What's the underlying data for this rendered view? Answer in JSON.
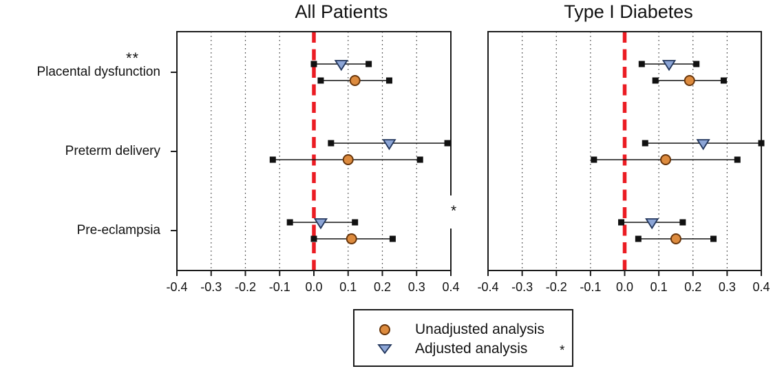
{
  "figure": {
    "annotations": {
      "placental_double_star": "**",
      "between_panels_star": "*"
    },
    "legend": {
      "items": [
        {
          "marker": "circle-icon",
          "label": "Unadjusted analysis"
        },
        {
          "marker": "triangle-down-icon",
          "label": "Adjusted analysis"
        }
      ],
      "footnote_star": "*"
    },
    "colors": {
      "unadjusted_fill": "#DD8B3E",
      "unadjusted_stroke": "#67350B",
      "adjusted_fill": "#8CA5D6",
      "adjusted_stroke": "#22365C",
      "reference_line": "#EB1C23",
      "axis": "#1a1a1a",
      "errorbar": "#111111",
      "grid_dot": "#3a3a3a"
    }
  },
  "chart_data": [
    {
      "type": "forest",
      "title": "All Patients",
      "xlim": [
        -0.4,
        0.4
      ],
      "xtick_values": [
        -0.4,
        -0.3,
        -0.2,
        -0.1,
        0.0,
        0.1,
        0.2,
        0.3,
        0.4
      ],
      "xtick_labels": [
        "-0.4",
        "-0.3",
        "-0.2",
        "-0.1",
        "0.0",
        "0.1",
        "0.2",
        "0.3",
        "0.4"
      ],
      "reference_x": 0.0,
      "grid": true,
      "categories": [
        "Placental dysfunction",
        "Preterm delivery",
        "Pre-eclampsia"
      ],
      "series": [
        {
          "name": "Unadjusted analysis",
          "marker": "circle",
          "estimates": [
            0.12,
            0.1,
            0.11
          ],
          "ci_low": [
            0.02,
            -0.12,
            0.0
          ],
          "ci_high": [
            0.22,
            0.31,
            0.23
          ]
        },
        {
          "name": "Adjusted analysis",
          "marker": "triangle-down",
          "estimates": [
            0.08,
            0.22,
            0.02
          ],
          "ci_low": [
            0.0,
            0.05,
            -0.07
          ],
          "ci_high": [
            0.16,
            0.39,
            0.12
          ]
        }
      ]
    },
    {
      "type": "forest",
      "title": "Type I Diabetes",
      "xlim": [
        -0.4,
        0.4
      ],
      "xtick_values": [
        -0.4,
        -0.3,
        -0.2,
        -0.1,
        0.0,
        0.1,
        0.2,
        0.3,
        0.4
      ],
      "xtick_labels": [
        "-0.4",
        "-0.3",
        "-0.2",
        "-0.1",
        "0.0",
        "0.1",
        "0.2",
        "0.3",
        "0.4"
      ],
      "reference_x": 0.0,
      "grid": true,
      "categories": [
        "Placental dysfunction",
        "Preterm delivery",
        "Pre-eclampsia"
      ],
      "series": [
        {
          "name": "Unadjusted analysis",
          "marker": "circle",
          "estimates": [
            0.19,
            0.12,
            0.15
          ],
          "ci_low": [
            0.09,
            -0.09,
            0.04
          ],
          "ci_high": [
            0.29,
            0.33,
            0.26
          ]
        },
        {
          "name": "Adjusted analysis",
          "marker": "triangle-down",
          "estimates": [
            0.13,
            0.23,
            0.08
          ],
          "ci_low": [
            0.05,
            0.06,
            -0.01
          ],
          "ci_high": [
            0.21,
            0.4,
            0.17
          ]
        }
      ]
    }
  ]
}
